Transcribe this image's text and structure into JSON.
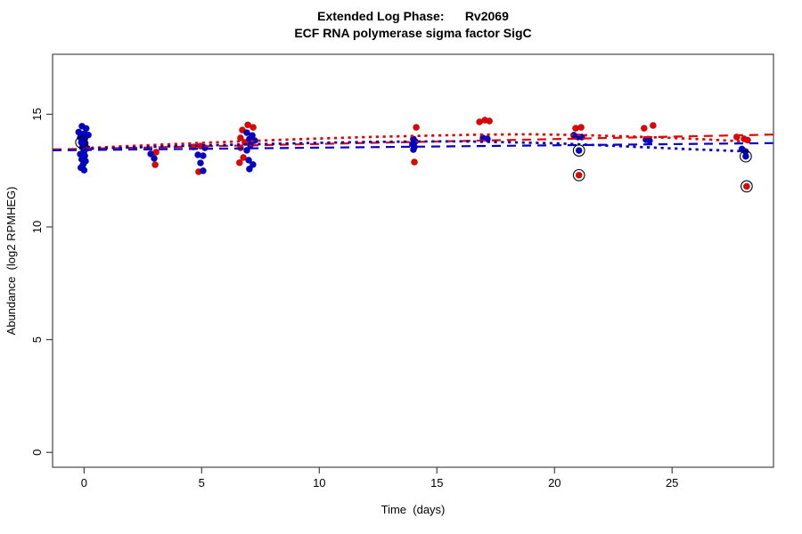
{
  "chart_data": {
    "type": "scatter",
    "title": "Extended Log Phase:      Rv2069",
    "subtitle": "ECF RNA polymerase sigma factor SigC",
    "xlabel": "Time  (days)",
    "ylabel": "Abundance  (log2 RPMHEG)",
    "x_axis": {
      "label": "Time  (days)",
      "ticks": [
        0,
        5,
        10,
        15,
        20,
        25
      ],
      "lim": [
        -1.34,
        29.31
      ]
    },
    "y_axis": {
      "label": "Abundance  (log2 RPMHEG)",
      "ticks": [
        0,
        5,
        10,
        15
      ],
      "lim": [
        -0.66,
        17.66
      ]
    },
    "grid": false,
    "legend": null,
    "colors": {
      "red": "#e60000",
      "blue": "#0000cc",
      "outlier_ring": "#000000",
      "axis": "#454545",
      "text": "#000000"
    },
    "series": [
      {
        "name": "red-points",
        "color_key": "red",
        "points": [
          [
            3.06,
            13.32
          ],
          [
            3.02,
            12.76
          ],
          [
            4.65,
            13.55
          ],
          [
            4.95,
            13.59
          ],
          [
            4.87,
            12.45
          ],
          [
            6.96,
            14.53
          ],
          [
            7.19,
            14.42
          ],
          [
            6.73,
            14.3
          ],
          [
            6.65,
            13.95
          ],
          [
            6.84,
            13.75
          ],
          [
            6.65,
            13.51
          ],
          [
            6.77,
            13.08
          ],
          [
            6.61,
            12.85
          ],
          [
            14.12,
            14.42
          ],
          [
            14.04,
            12.88
          ],
          [
            16.81,
            14.66
          ],
          [
            17.04,
            14.74
          ],
          [
            17.23,
            14.7
          ],
          [
            20.9,
            14.38
          ],
          [
            21.13,
            14.42
          ],
          [
            23.81,
            14.38
          ],
          [
            24.19,
            14.5
          ],
          [
            27.75,
            13.99
          ],
          [
            28.06,
            13.91
          ],
          [
            28.21,
            13.85
          ]
        ]
      },
      {
        "name": "blue-points",
        "color_key": "blue",
        "points": [
          [
            -0.09,
            14.47
          ],
          [
            0.09,
            14.37
          ],
          [
            -0.23,
            14.21
          ],
          [
            0.0,
            14.14
          ],
          [
            0.18,
            14.08
          ],
          [
            -0.16,
            13.97
          ],
          [
            0.03,
            13.92
          ],
          [
            0.05,
            13.71
          ],
          [
            -0.08,
            13.53
          ],
          [
            0.13,
            13.49
          ],
          [
            0.0,
            13.36
          ],
          [
            -0.16,
            13.23
          ],
          [
            0.03,
            13.16
          ],
          [
            -0.1,
            13.0
          ],
          [
            0.06,
            12.92
          ],
          [
            -0.04,
            12.77
          ],
          [
            -0.14,
            12.63
          ],
          [
            0.0,
            12.52
          ],
          [
            2.83,
            13.24
          ],
          [
            2.98,
            13.04
          ],
          [
            5.14,
            13.51
          ],
          [
            4.84,
            13.2
          ],
          [
            5.06,
            13.16
          ],
          [
            4.95,
            12.84
          ],
          [
            5.06,
            12.49
          ],
          [
            6.92,
            14.18
          ],
          [
            7.15,
            14.06
          ],
          [
            7.03,
            13.9
          ],
          [
            7.26,
            13.83
          ],
          [
            7.07,
            13.63
          ],
          [
            6.92,
            13.4
          ],
          [
            7.0,
            12.96
          ],
          [
            7.18,
            12.77
          ],
          [
            7.03,
            12.57
          ],
          [
            14.0,
            13.9
          ],
          [
            14.08,
            13.79
          ],
          [
            13.96,
            13.67
          ],
          [
            14.04,
            13.55
          ],
          [
            14.0,
            13.43
          ],
          [
            16.96,
            13.95
          ],
          [
            17.15,
            13.91
          ],
          [
            20.82,
            14.07
          ],
          [
            21.0,
            13.99
          ],
          [
            21.16,
            13.99
          ],
          [
            23.89,
            13.87
          ],
          [
            24.04,
            13.83
          ],
          [
            27.97,
            13.46
          ],
          [
            28.12,
            13.35
          ]
        ]
      }
    ],
    "outliers": [
      {
        "color_key": "blue",
        "x": -0.12,
        "y": 13.75
      },
      {
        "color_key": "blue",
        "x": 21.04,
        "y": 13.39
      },
      {
        "color_key": "red",
        "x": 21.04,
        "y": 12.3
      },
      {
        "color_key": "blue",
        "x": 28.13,
        "y": 13.13
      },
      {
        "color_key": "red",
        "x": 28.17,
        "y": 11.8
      }
    ],
    "trend_lines": [
      {
        "name": "red-dashed",
        "color_key": "red",
        "style": "dashed",
        "points": [
          [
            -1.34,
            13.44
          ],
          [
            29.31,
            14.1
          ]
        ]
      },
      {
        "name": "blue-dashed",
        "color_key": "blue",
        "style": "dashed",
        "points": [
          [
            -1.34,
            13.4
          ],
          [
            29.31,
            13.72
          ]
        ]
      },
      {
        "name": "red-dotted",
        "color_key": "red",
        "style": "dotted",
        "points": [
          [
            0,
            13.5
          ],
          [
            3,
            13.64
          ],
          [
            6,
            13.77
          ],
          [
            9,
            13.89
          ],
          [
            12,
            13.99
          ],
          [
            15,
            14.06
          ],
          [
            17,
            14.1
          ],
          [
            19,
            14.11
          ],
          [
            21,
            14.08
          ],
          [
            23,
            14.02
          ],
          [
            25,
            13.95
          ],
          [
            26.5,
            13.88
          ],
          [
            28,
            13.8
          ]
        ]
      },
      {
        "name": "blue-dotted",
        "color_key": "blue",
        "style": "dotted",
        "points": [
          [
            0,
            13.46
          ],
          [
            3,
            13.56
          ],
          [
            6,
            13.64
          ],
          [
            9,
            13.71
          ],
          [
            12,
            13.77
          ],
          [
            14,
            13.79
          ],
          [
            16,
            13.8
          ],
          [
            18,
            13.76
          ],
          [
            20,
            13.71
          ],
          [
            22,
            13.62
          ],
          [
            24,
            13.53
          ],
          [
            26,
            13.44
          ],
          [
            28,
            13.36
          ]
        ]
      }
    ]
  }
}
